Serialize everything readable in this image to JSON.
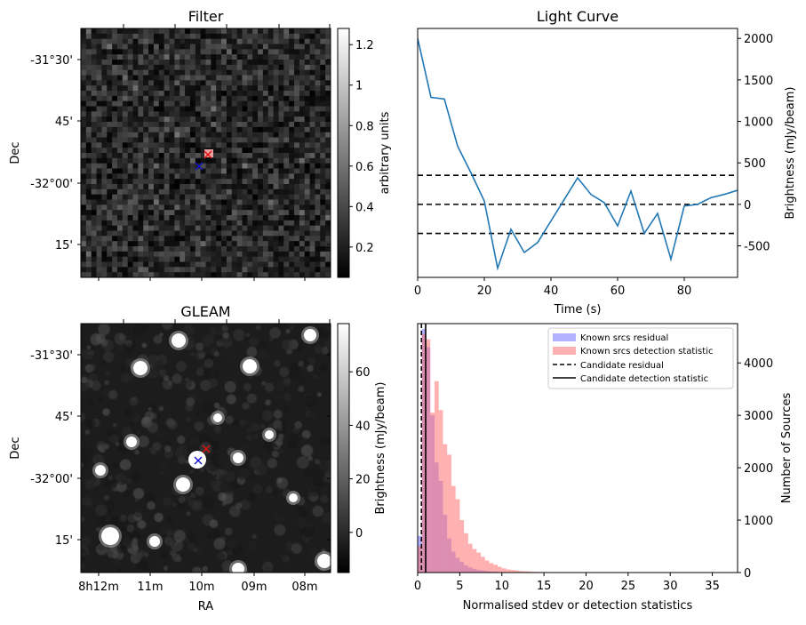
{
  "chart_data": [
    {
      "panel": "filter",
      "type": "heatmap",
      "title": "Filter",
      "xlabel": "",
      "ylabel": "Dec",
      "y_ticks": [
        "-31°30'",
        "45'",
        "-32°00'",
        "15'"
      ],
      "colorbar": {
        "label": "arbitrary units",
        "ticks": [
          0.2,
          0.4,
          0.6,
          0.8,
          1.0,
          1.2
        ],
        "range": [
          0.05,
          1.28
        ]
      },
      "markers": [
        {
          "symbol": "x",
          "color": "#e01010"
        },
        {
          "symbol": "x",
          "color": "#1010d0"
        }
      ]
    },
    {
      "panel": "light_curve",
      "type": "line",
      "title": "Light Curve",
      "xlabel": "Time (s)",
      "ylabel": "Brightness (mJy/beam)",
      "xlim": [
        0,
        96
      ],
      "ylim": [
        -880,
        2120
      ],
      "x_ticks": [
        0,
        20,
        40,
        60,
        80
      ],
      "y_ticks": [
        -500,
        0,
        500,
        1000,
        1500,
        2000
      ],
      "series": [
        {
          "color": "#1f77b4",
          "x": [
            0,
            4,
            8,
            12,
            16,
            20,
            24,
            28,
            32,
            36,
            40,
            44,
            48,
            52,
            56,
            60,
            64,
            68,
            72,
            76,
            80,
            84,
            88,
            92,
            96
          ],
          "y": [
            2000,
            1290,
            1270,
            700,
            380,
            40,
            -770,
            -300,
            -580,
            -460,
            -200,
            60,
            320,
            120,
            20,
            -260,
            160,
            -350,
            -110,
            -660,
            -20,
            0,
            80,
            120,
            170
          ]
        }
      ],
      "hlines": [
        350,
        0,
        -350
      ]
    },
    {
      "panel": "gleam",
      "type": "heatmap",
      "title": "GLEAM",
      "xlabel": "RA",
      "ylabel": "Dec",
      "x_ticks": [
        "8h12m",
        "11m",
        "10m",
        "09m",
        "08m"
      ],
      "y_ticks": [
        "-31°30'",
        "45'",
        "-32°00'",
        "15'"
      ],
      "colorbar": {
        "label": "Brightness (mJy/beam)",
        "ticks": [
          0,
          20,
          40,
          60
        ],
        "range": [
          -15,
          78
        ]
      },
      "markers": [
        {
          "symbol": "x",
          "color": "#e01010"
        },
        {
          "symbol": "x",
          "color": "#1010d0"
        }
      ]
    },
    {
      "panel": "histogram",
      "type": "bar",
      "title": "",
      "xlabel": "Normalised stdev or detection statistics",
      "ylabel": "Number of Sources",
      "xlim": [
        0,
        38
      ],
      "ylim": [
        0,
        4750
      ],
      "x_ticks": [
        0,
        5,
        10,
        15,
        20,
        25,
        30,
        35
      ],
      "y_ticks": [
        0,
        1000,
        2000,
        3000,
        4000
      ],
      "bin_width": 0.5,
      "series": [
        {
          "name": "Known srcs residual",
          "color": "#6464ff",
          "x_start": 0,
          "values": [
            700,
            4650,
            4300,
            3000,
            2100,
            1750,
            1100,
            650,
            400,
            280,
            200,
            140,
            100,
            70,
            50,
            40,
            30,
            20,
            15,
            10,
            8,
            6,
            5,
            4,
            3,
            2,
            2,
            1,
            1
          ]
        },
        {
          "name": "Known srcs detection statistic",
          "color": "#ff7070",
          "x_start": 0,
          "values": [
            500,
            4550,
            4450,
            3050,
            3650,
            3100,
            2450,
            2250,
            1650,
            1400,
            1000,
            750,
            550,
            450,
            380,
            300,
            230,
            180,
            150,
            110,
            80,
            60,
            50,
            40,
            30,
            25,
            20,
            15,
            12,
            10,
            8,
            6,
            5,
            4,
            3,
            3,
            2,
            2,
            2,
            1,
            1,
            1,
            1
          ]
        }
      ],
      "vlines": [
        {
          "name": "Candidate residual",
          "x": 0.45,
          "style": "dashed"
        },
        {
          "name": "Candidate detection statistic",
          "x": 0.95,
          "style": "solid"
        }
      ],
      "legend": "top-right"
    }
  ]
}
